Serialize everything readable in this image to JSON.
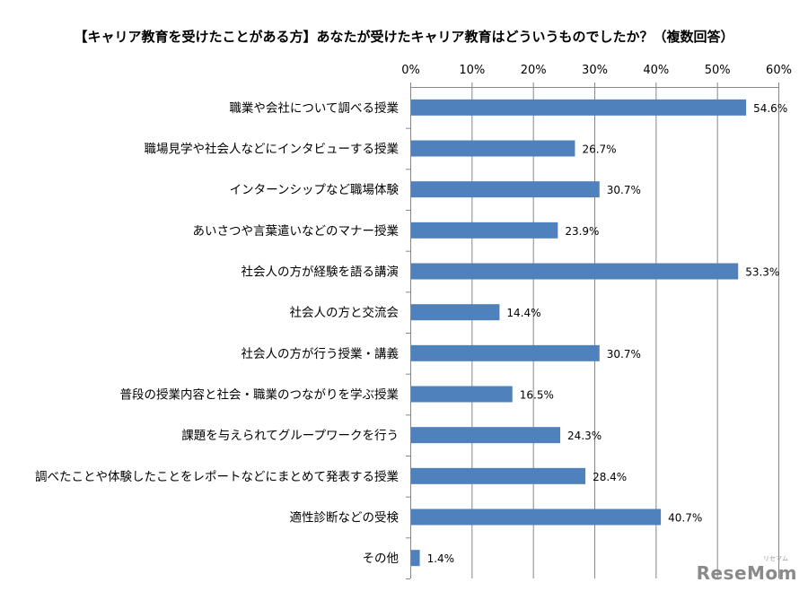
{
  "chart_data": {
    "type": "bar",
    "orientation": "horizontal",
    "title": "【キャリア教育を受けたことがある方】あなたが受けたキャリア教育はどういうものでしたか？（複数回答）",
    "categories": [
      "職業や会社について調べる授業",
      "職場見学や社会人などにインタビューする授業",
      "インターンシップなど職場体験",
      "あいさつや言葉遣いなどのマナー授業",
      "社会人の方が経験を語る講演",
      "社会人の方と交流会",
      "社会人の方が行う授業・講義",
      "普段の授業内容と社会・職業のつながりを学ぶ授業",
      "課題を与えられてグループワークを行う",
      "調べたことや体験したことをレポートなどにまとめて発表する授業",
      "適性診断などの受検",
      "その他"
    ],
    "values": [
      54.6,
      26.7,
      30.7,
      23.9,
      53.3,
      14.4,
      30.7,
      16.5,
      24.3,
      28.4,
      40.7,
      1.4
    ],
    "value_labels": [
      "54.6%",
      "26.7%",
      "30.7%",
      "23.9%",
      "53.3%",
      "14.4%",
      "30.7%",
      "16.5%",
      "24.3%",
      "28.4%",
      "40.7%",
      "1.4%"
    ],
    "xlim": [
      0,
      60
    ],
    "x_ticks": [
      0,
      10,
      20,
      30,
      40,
      50,
      60
    ],
    "x_tick_labels": [
      "0%",
      "10%",
      "20%",
      "30%",
      "40%",
      "50%",
      "60%"
    ],
    "axis_position": "top",
    "grid": true,
    "legend": "none",
    "bar_color": "#4F81BD",
    "grid_color": "#868686"
  },
  "watermark": {
    "text": "ReseMom",
    "subtext": "リセマム"
  }
}
